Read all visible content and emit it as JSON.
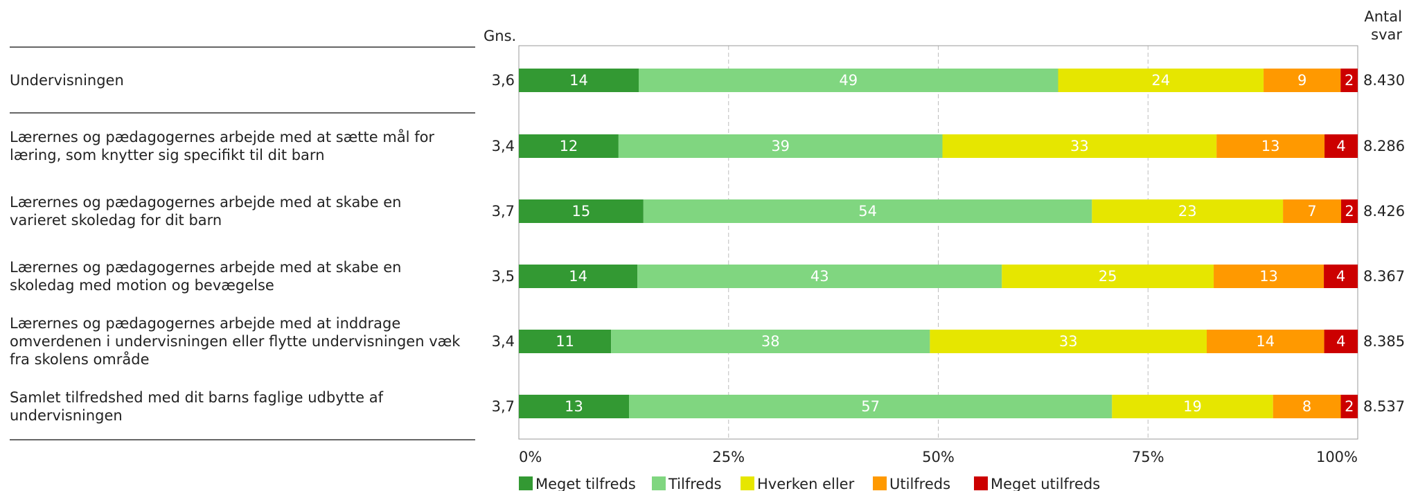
{
  "chart_data": {
    "type": "bar",
    "orientation": "horizontal",
    "stacked": true,
    "percent": true,
    "header_mean": "Gns.",
    "header_count_line1": "Antal",
    "header_count_line2": "svar",
    "categories": [
      [
        "Undervisningen"
      ],
      [
        "Lærernes og pædagogernes arbejde med at sætte mål for",
        "læring, som knytter sig specifikt til dit barn"
      ],
      [
        "Lærernes og pædagogernes arbejde med at skabe en",
        "varieret skoledag for dit barn"
      ],
      [
        "Lærernes og pædagogernes arbejde med at skabe en",
        "skoledag med motion og bevægelse"
      ],
      [
        "Lærernes og pædagogernes arbejde med at inddrage",
        "omverdenen i undervisningen eller flytte undervisningen væk",
        "fra skolens område"
      ],
      [
        "Samlet tilfredshed med dit barns faglige udbytte af",
        "undervisningen"
      ]
    ],
    "means": [
      "3,6",
      "3,4",
      "3,7",
      "3,5",
      "3,4",
      "3,7"
    ],
    "counts": [
      "8.430",
      "8.286",
      "8.426",
      "8.367",
      "8.385",
      "8.537"
    ],
    "series": [
      {
        "name": "Meget tilfreds",
        "color": "#339933",
        "values": [
          14,
          12,
          15,
          14,
          11,
          13
        ]
      },
      {
        "name": "Tilfreds",
        "color": "#80d680",
        "values": [
          49,
          39,
          54,
          43,
          38,
          57
        ]
      },
      {
        "name": "Hverken eller",
        "color": "#e6e600",
        "values": [
          24,
          33,
          23,
          25,
          33,
          19
        ]
      },
      {
        "name": "Utilfreds",
        "color": "#ff9900",
        "values": [
          9,
          13,
          7,
          13,
          14,
          8
        ]
      },
      {
        "name": "Meget utilfreds",
        "color": "#cc0000",
        "values": [
          2,
          4,
          2,
          4,
          4,
          2
        ]
      }
    ],
    "xlim": [
      0,
      100
    ],
    "xticks": [
      0,
      25,
      50,
      75,
      100
    ],
    "xtick_labels": [
      "0%",
      "25%",
      "50%",
      "75%",
      "100%"
    ],
    "grid": true,
    "legend": "bottom"
  }
}
